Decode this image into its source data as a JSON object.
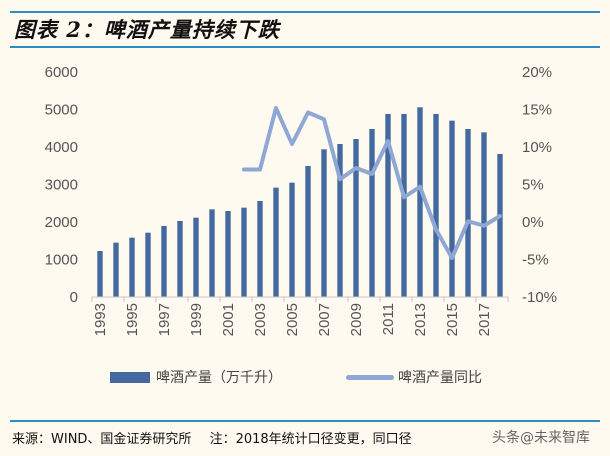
{
  "title": "图表 2：啤酒产量持续下跌",
  "chart_data": {
    "type": "bar+line",
    "title": "图表 2：啤酒产量持续下跌",
    "categories": [
      1993,
      1994,
      1995,
      1996,
      1997,
      1998,
      1999,
      2000,
      2001,
      2002,
      2003,
      2004,
      2005,
      2006,
      2007,
      2008,
      2009,
      2010,
      2011,
      2012,
      2013,
      2014,
      2015,
      2016,
      2017,
      2018
    ],
    "x_tick_labels": [
      "1993",
      "1995",
      "1997",
      "1999",
      "2001",
      "2003",
      "2005",
      "2007",
      "2009",
      "2011",
      "2013",
      "2015",
      "2017"
    ],
    "series": [
      {
        "name": "啤酒产量（万千升）",
        "type": "bar",
        "axis": "left",
        "color": "#44699e",
        "values": [
          1227,
          1450,
          1582,
          1715,
          1893,
          2027,
          2116,
          2338,
          2293,
          2382,
          2560,
          2916,
          3049,
          3493,
          3938,
          4080,
          4213,
          4480,
          4880,
          4880,
          5058,
          4880,
          4702,
          4480,
          4391,
          3813
        ]
      },
      {
        "name": "啤酒产量同比",
        "type": "line",
        "axis": "right",
        "color": "#8ea7d4",
        "values": [
          null,
          null,
          null,
          null,
          null,
          null,
          null,
          null,
          null,
          7.0,
          7.0,
          15.2,
          10.4,
          14.6,
          13.7,
          5.7,
          7.2,
          6.4,
          10.8,
          3.3,
          4.7,
          -1.0,
          -4.8,
          0.1,
          -0.5,
          0.8
        ]
      }
    ],
    "left_axis": {
      "ylim": [
        0,
        6000
      ],
      "ticks": [
        "0",
        "1000",
        "2000",
        "3000",
        "4000",
        "5000",
        "6000"
      ]
    },
    "right_axis": {
      "ylim": [
        -10,
        20
      ],
      "ticks": [
        "-10%",
        "-5%",
        "0%",
        "5%",
        "10%",
        "15%",
        "20%"
      ]
    },
    "grid": false,
    "legend": "bottom"
  },
  "footer": {
    "source": "来源：WIND、国金证券研究所",
    "note": "注：2018年统计口径变更，同口径",
    "watermark": "头条@未来智库"
  }
}
